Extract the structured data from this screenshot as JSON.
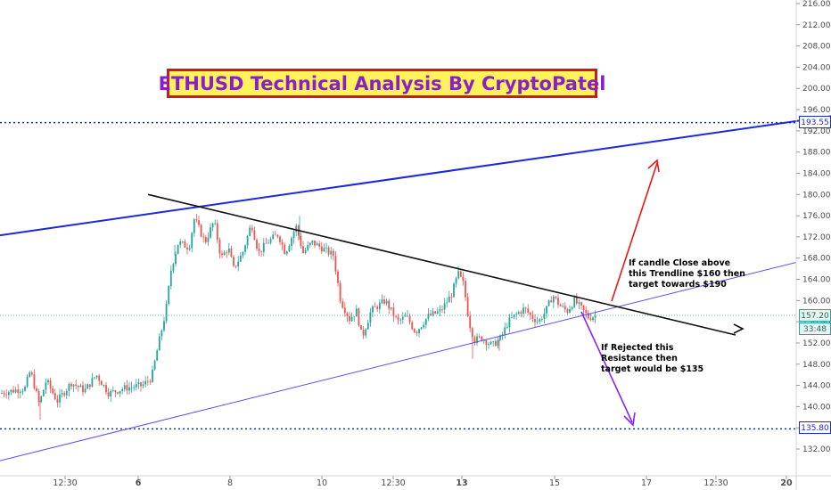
{
  "title": "ETHUSD Technical Analysis By CryptoPatel",
  "annotations": {
    "bullish": "If candle Close above\nthis Trendline $160 then\ntarget towards $190",
    "bearish": "If Rejected this\nResistance then\ntarget would be $135"
  },
  "price_tags": {
    "upper_level": "193.55",
    "current_price": "157.20",
    "countdown": "33:48",
    "lower_level": "135.80"
  },
  "colors": {
    "up_candle": "#26a69a",
    "down_candle": "#ef5350",
    "channel_upper": "#1b2ad6",
    "channel_lower": "#5b4ef0",
    "trendline": "#111111",
    "level_line": "#1b2ad6",
    "bull_arrow": "#e81818",
    "bear_arrow": "#8c25f0",
    "title_bg": "#fff25a",
    "title_border": "#d01818",
    "title_text": "#8a1fc6"
  },
  "chart_data": {
    "type": "candlestick",
    "ylim": [
      128,
      218
    ],
    "y_ticks": [
      132,
      136,
      140,
      144,
      148,
      152,
      156,
      160,
      164,
      168,
      172,
      176,
      180,
      184,
      188,
      192,
      196,
      200,
      204,
      208,
      212,
      216
    ],
    "x_tick_labels": [
      "12:30",
      "6",
      "8",
      "10",
      "12:30",
      "13",
      "15",
      "17",
      "12:30",
      "20"
    ],
    "bold_x_ticks": [
      "6",
      "13",
      "20"
    ],
    "levels": [
      193.55,
      135.8
    ],
    "current_price": 157.2,
    "close_path": [
      [
        "0",
        142.5
      ],
      [
        "5/5",
        144
      ],
      [
        "5/5 12:00",
        146.5
      ],
      [
        "5/6 00:00",
        141.2
      ],
      [
        "5/6",
        144
      ],
      [
        "5/6 12:00",
        143.5
      ],
      [
        "5/6 18:00",
        144.5
      ],
      [
        "5/6 21:00",
        143.2
      ],
      [
        "5/7 00:00",
        150
      ],
      [
        "5/7 03:00",
        160
      ],
      [
        "5/7 06:00",
        170
      ],
      [
        "5/7 12:00",
        175
      ],
      [
        "5/7 18:00",
        170
      ],
      [
        "5/8 00:00",
        175.2
      ],
      [
        "5/8 06:00",
        168
      ],
      [
        "5/8 12:00",
        172
      ],
      [
        "5/8 18:00",
        170.5
      ],
      [
        "5/9 00:00",
        174
      ],
      [
        "5/9 06:00",
        169
      ],
      [
        "5/9 12:00",
        172
      ],
      [
        "5/10 00:00",
        170
      ],
      [
        "5/10 06:00",
        160
      ],
      [
        "5/10 12:00",
        156.5
      ],
      [
        "5/10 18:00",
        153
      ],
      [
        "5/11 00:00",
        158
      ],
      [
        "5/11 12:00",
        160
      ],
      [
        "5/11 18:00",
        156
      ],
      [
        "5/12 00:00",
        156
      ],
      [
        "5/12 12:00",
        161
      ],
      [
        "5/12 21:00",
        165
      ],
      [
        "5/13 00:00",
        164.5
      ],
      [
        "5/13 03:00",
        155
      ],
      [
        "5/13 06:00",
        152.5
      ],
      [
        "5/13 18:00",
        152
      ],
      [
        "5/14 03:00",
        155
      ],
      [
        "5/14 12:00",
        158
      ],
      [
        "5/14 18:00",
        157
      ],
      [
        "5/15 00:00",
        160
      ],
      [
        "5/15 09:00",
        158
      ],
      [
        "5/15 15:00",
        161
      ],
      [
        "5/15 21:00",
        158
      ],
      [
        "5/16 03:00",
        157
      ]
    ],
    "trendlines": [
      {
        "name": "channel-upper",
        "points": [
          [
            "start",
            172.3
          ],
          [
            "end",
            194.5
          ]
        ]
      },
      {
        "name": "descending-resistance",
        "points": [
          [
            "5/7",
            180
          ],
          [
            "5/17 18:00",
            153.3
          ]
        ]
      },
      {
        "name": "channel-lower",
        "points": [
          [
            "start",
            129.8
          ],
          [
            "end",
            167.2
          ]
        ]
      }
    ],
    "scenarios": [
      {
        "name": "bullish",
        "from": 158.5,
        "to": 186.8
      },
      {
        "name": "bearish",
        "from": 157.2,
        "to": 138.2
      }
    ]
  }
}
